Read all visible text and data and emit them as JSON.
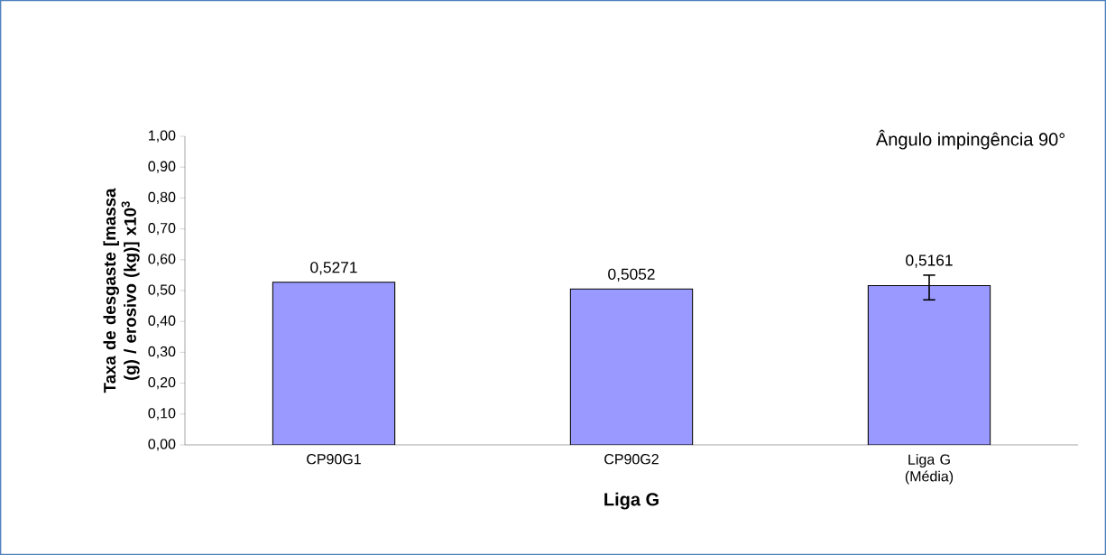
{
  "chart_data": {
    "type": "bar",
    "title": "Ângulo impingência 90°",
    "xlabel": "Liga G",
    "ylabel": "Taxa de desgaste [massa (g) / erosivo (kg)] x10$^{3}$",
    "categories": [
      "CP90G1",
      "CP90G2",
      "Liga G (Média)"
    ],
    "values": [
      0.5271,
      0.5052,
      0.5161
    ],
    "color": "#9999ff",
    "value_labels": [
      "0,5271",
      "0,5052",
      "0,5161"
    ],
    "errors": [
      null,
      null,
      [
        0.47,
        0.55
      ]
    ],
    "ylim": [
      0,
      1
    ],
    "yticks": [
      {
        "value": 0,
        "label": "0,00"
      },
      {
        "value": 0.1,
        "label": "0,10"
      },
      {
        "value": 0.2,
        "label": "0,20"
      },
      {
        "value": 0.3,
        "label": "0,30"
      },
      {
        "value": 0.4,
        "label": "0,40"
      },
      {
        "value": 0.5,
        "label": "0,50"
      },
      {
        "value": 0.6,
        "label": "0,60"
      },
      {
        "value": 0.7,
        "label": "0,70"
      },
      {
        "value": 0.8,
        "label": "0,80"
      },
      {
        "value": 0.9,
        "label": "0,90"
      },
      {
        "value": 1,
        "label": "1,00"
      }
    ]
  }
}
